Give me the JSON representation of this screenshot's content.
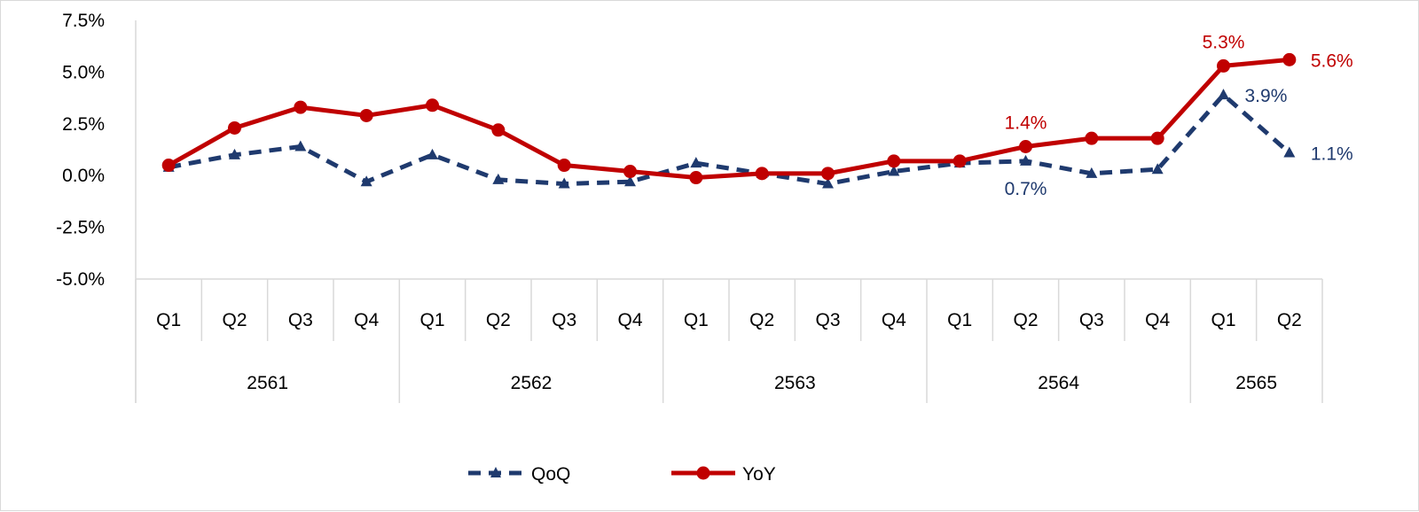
{
  "chart_data": {
    "type": "line",
    "title": "",
    "xlabel": "",
    "ylabel": "",
    "ylim": [
      -5.0,
      7.5
    ],
    "y_ticks": [
      "7.5%",
      "5.0%",
      "2.5%",
      "0.0%",
      "-2.5%",
      "-5.0%"
    ],
    "y_tick_values": [
      7.5,
      5.0,
      2.5,
      0.0,
      -2.5,
      -5.0
    ],
    "grid": false,
    "legend_position": "bottom",
    "categories": [
      "Q1",
      "Q2",
      "Q3",
      "Q4",
      "Q1",
      "Q2",
      "Q3",
      "Q4",
      "Q1",
      "Q2",
      "Q3",
      "Q4",
      "Q1",
      "Q2",
      "Q3",
      "Q4",
      "Q1",
      "Q2"
    ],
    "year_groups": [
      {
        "label": "2561",
        "count": 4
      },
      {
        "label": "2562",
        "count": 4
      },
      {
        "label": "2563",
        "count": 4
      },
      {
        "label": "2564",
        "count": 4
      },
      {
        "label": "2565",
        "count": 2
      }
    ],
    "series": [
      {
        "name": "QoQ",
        "color": "#1f3a6e",
        "style": "dashed",
        "marker": "triangle",
        "values": [
          0.4,
          1.0,
          1.4,
          -0.3,
          1.0,
          -0.2,
          -0.4,
          -0.3,
          0.6,
          0.1,
          -0.4,
          0.2,
          0.6,
          0.7,
          0.1,
          0.3,
          3.9,
          1.1
        ],
        "labels": [
          {
            "index": 13,
            "text": "0.7%",
            "position": "below"
          },
          {
            "index": 16,
            "text": "3.9%",
            "position": "right"
          },
          {
            "index": 17,
            "text": "1.1%",
            "position": "right"
          }
        ]
      },
      {
        "name": "YoY",
        "color": "#c00000",
        "style": "solid",
        "marker": "circle",
        "values": [
          0.5,
          2.3,
          3.3,
          2.9,
          3.4,
          2.2,
          0.5,
          0.2,
          -0.1,
          0.1,
          0.1,
          0.7,
          0.7,
          1.4,
          1.8,
          1.8,
          5.3,
          5.6
        ],
        "labels": [
          {
            "index": 13,
            "text": "1.4%",
            "position": "above"
          },
          {
            "index": 16,
            "text": "5.3%",
            "position": "above"
          },
          {
            "index": 17,
            "text": "5.6%",
            "position": "right"
          }
        ]
      }
    ]
  }
}
